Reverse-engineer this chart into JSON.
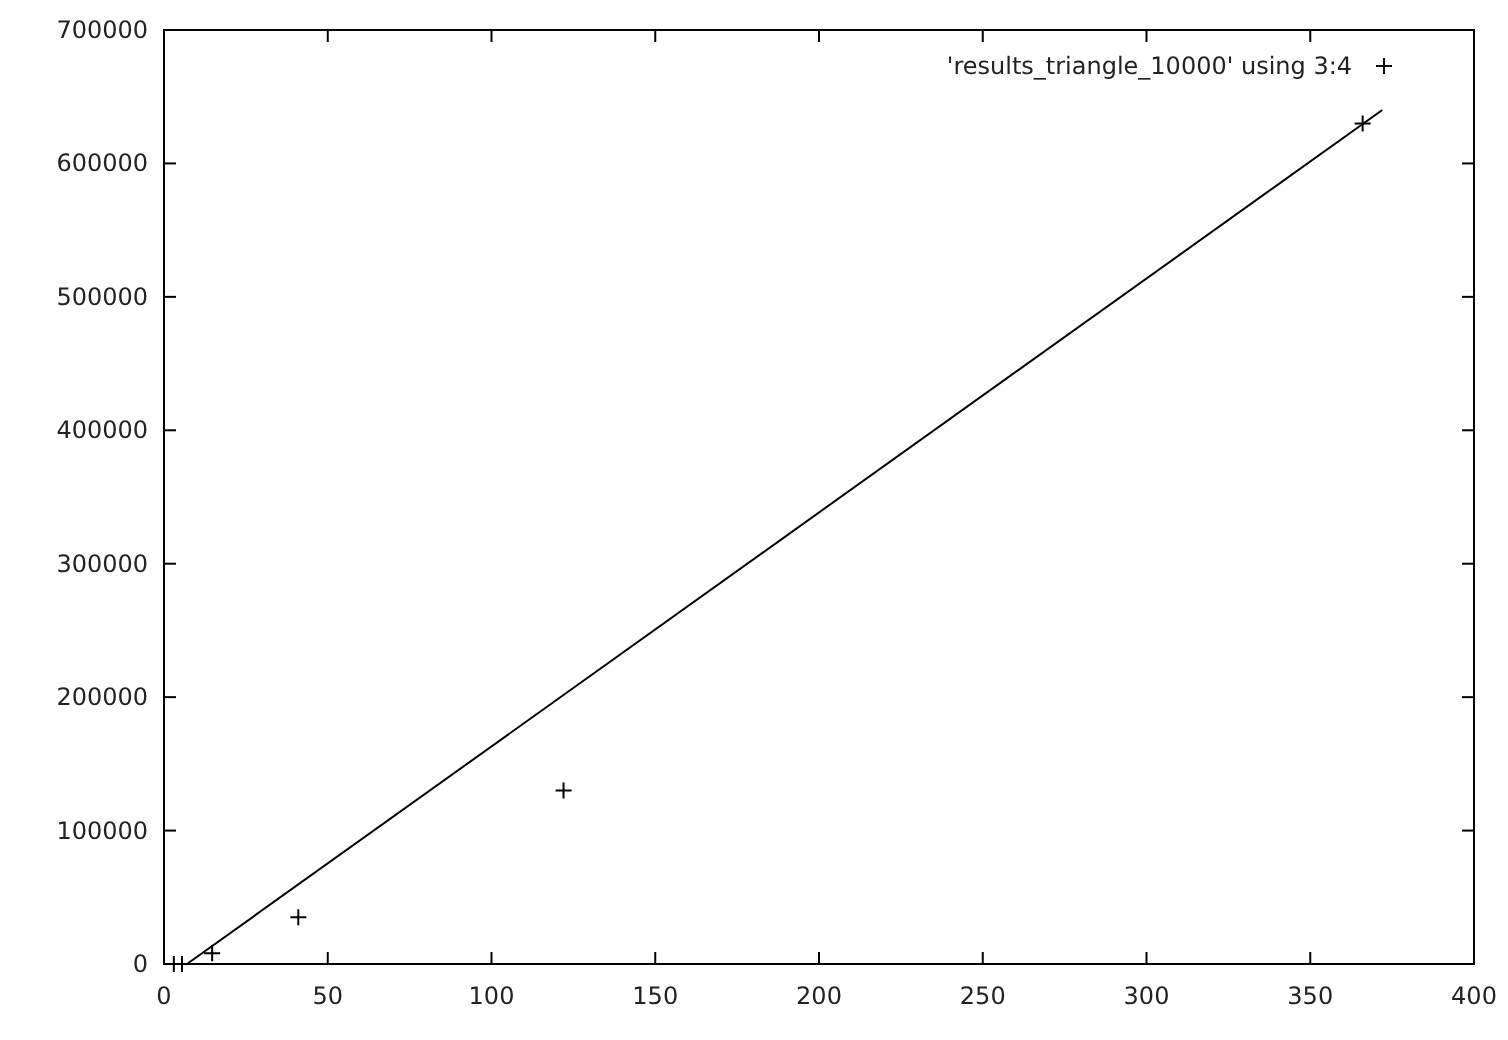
{
  "chart_data": {
    "type": "scatter",
    "xlim": [
      0,
      400
    ],
    "ylim": [
      0,
      700000
    ],
    "xticks": [
      0,
      50,
      100,
      150,
      200,
      250,
      300,
      350,
      400
    ],
    "yticks": [
      0,
      100000,
      200000,
      300000,
      400000,
      500000,
      600000,
      700000
    ],
    "grid": false,
    "legend": "top right",
    "series": [
      {
        "name": "'results_triangle_10000' using 3:4",
        "color": "#000000",
        "marker": "cross",
        "x": [
          3,
          5.5,
          14.7,
          41,
          122,
          366
        ],
        "values": [
          0,
          0,
          8000,
          35000,
          130000,
          630000
        ]
      },
      {
        "color": "#000000",
        "type": "line",
        "marker": "none",
        "x": [
          7,
          372
        ],
        "values": [
          0,
          640000
        ]
      }
    ]
  }
}
